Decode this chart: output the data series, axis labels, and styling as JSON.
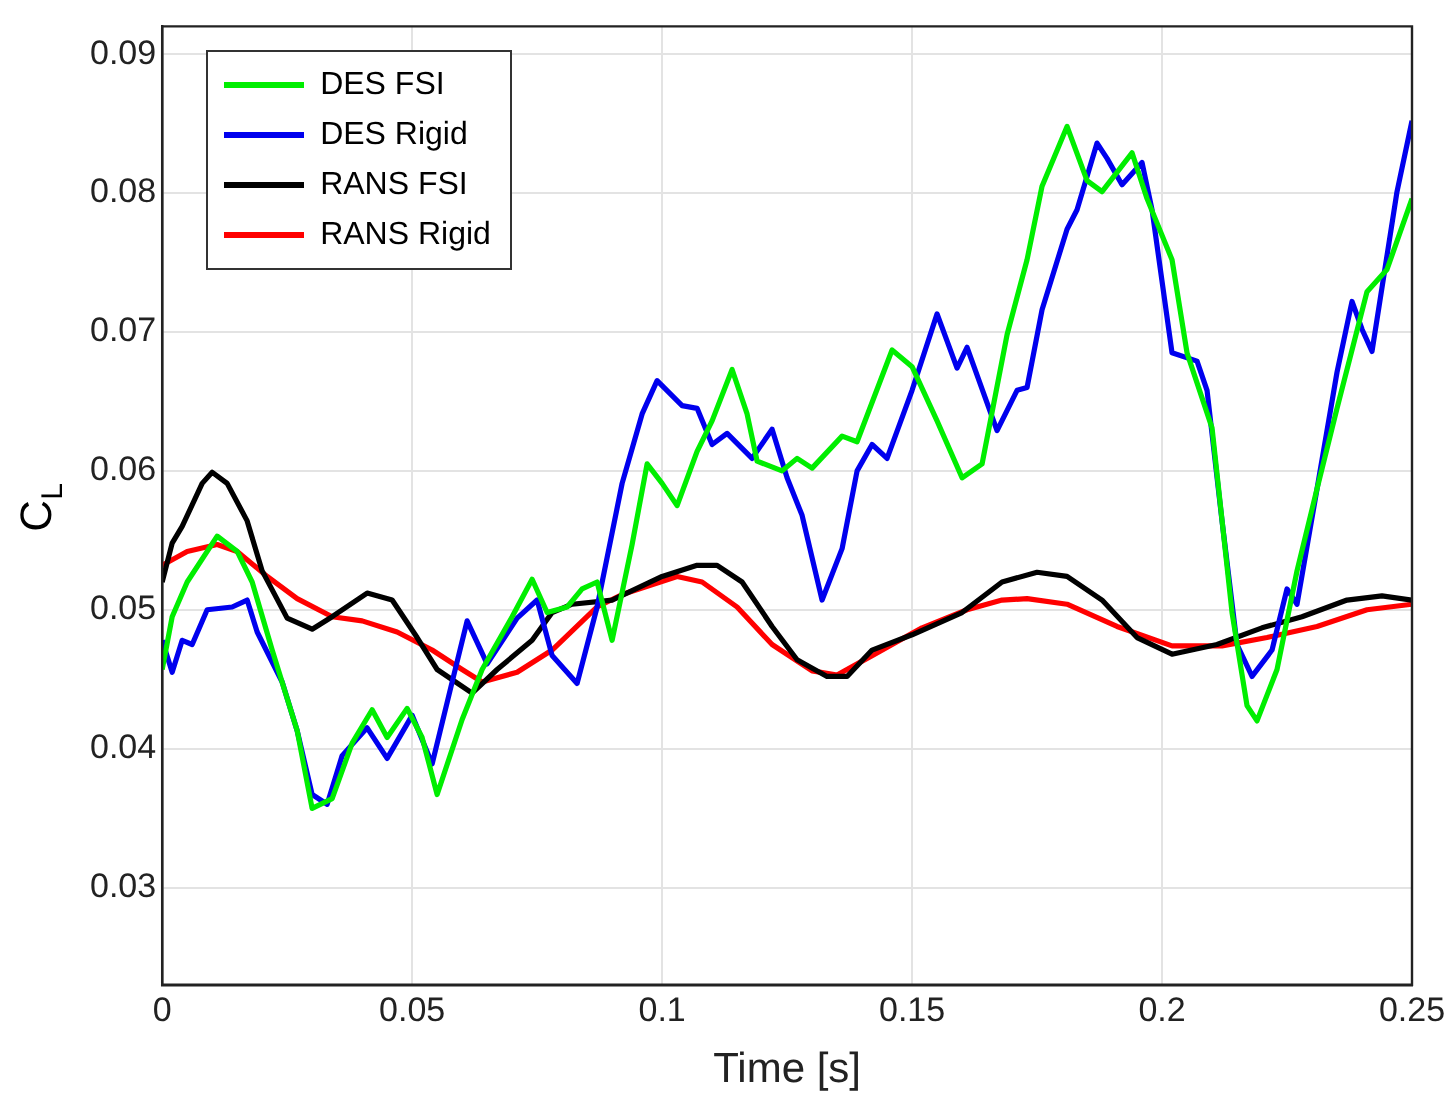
{
  "chart_data": {
    "type": "line",
    "xlabel": "Time [s]",
    "ylabel": "C$_{L}$",
    "xlim": [
      0,
      0.25
    ],
    "ylim": [
      0.023,
      0.092
    ],
    "xticks": [
      0,
      0.05,
      0.1,
      0.15,
      0.2,
      0.25
    ],
    "yticks": [
      0.03,
      0.04,
      0.05,
      0.06,
      0.07,
      0.08,
      0.09
    ],
    "grid": true,
    "legend": "top left",
    "marker": "none",
    "line_style": "solid",
    "series": [
      {
        "name": "DES FSI",
        "color": "#00ee00",
        "x": [
          0,
          0.002,
          0.005,
          0.011,
          0.015,
          0.018,
          0.022,
          0.027,
          0.03,
          0.034,
          0.038,
          0.042,
          0.045,
          0.049,
          0.052,
          0.055,
          0.06,
          0.064,
          0.07,
          0.074,
          0.077,
          0.081,
          0.084,
          0.087,
          0.09,
          0.094,
          0.097,
          0.1,
          0.103,
          0.107,
          0.11,
          0.114,
          0.117,
          0.119,
          0.124,
          0.127,
          0.13,
          0.136,
          0.139,
          0.146,
          0.15,
          0.155,
          0.16,
          0.164,
          0.169,
          0.173,
          0.176,
          0.181,
          0.185,
          0.188,
          0.194,
          0.197,
          0.202,
          0.205,
          0.21,
          0.214,
          0.217,
          0.219,
          0.223,
          0.227,
          0.231,
          0.235,
          0.241,
          0.245,
          0.25
        ],
        "values": [
          0.0457,
          0.0495,
          0.052,
          0.0553,
          0.0542,
          0.052,
          0.0471,
          0.0413,
          0.0357,
          0.0364,
          0.0404,
          0.0428,
          0.0408,
          0.0429,
          0.0408,
          0.0367,
          0.0421,
          0.0457,
          0.0495,
          0.0522,
          0.0498,
          0.0502,
          0.0515,
          0.052,
          0.0478,
          0.0547,
          0.0605,
          0.0591,
          0.0575,
          0.0614,
          0.0636,
          0.0673,
          0.0641,
          0.0607,
          0.06,
          0.0609,
          0.0602,
          0.0625,
          0.0621,
          0.0687,
          0.0675,
          0.0636,
          0.0595,
          0.0605,
          0.0698,
          0.0752,
          0.0805,
          0.0848,
          0.0809,
          0.0801,
          0.0829,
          0.0796,
          0.0752,
          0.0685,
          0.0631,
          0.0498,
          0.0431,
          0.042,
          0.0457,
          0.0528,
          0.0587,
          0.0645,
          0.0729,
          0.0745,
          0.0796
        ]
      },
      {
        "name": "DES Rigid",
        "color": "#0000ee",
        "x": [
          0,
          0.002,
          0.004,
          0.006,
          0.009,
          0.014,
          0.017,
          0.019,
          0.024,
          0.027,
          0.03,
          0.033,
          0.036,
          0.041,
          0.045,
          0.05,
          0.054,
          0.058,
          0.061,
          0.065,
          0.071,
          0.075,
          0.078,
          0.083,
          0.087,
          0.092,
          0.096,
          0.099,
          0.104,
          0.107,
          0.11,
          0.113,
          0.118,
          0.122,
          0.125,
          0.128,
          0.132,
          0.136,
          0.139,
          0.142,
          0.145,
          0.15,
          0.155,
          0.159,
          0.161,
          0.167,
          0.171,
          0.173,
          0.176,
          0.181,
          0.183,
          0.187,
          0.189,
          0.192,
          0.196,
          0.198,
          0.202,
          0.207,
          0.209,
          0.212,
          0.215,
          0.218,
          0.222,
          0.225,
          0.227,
          0.231,
          0.235,
          0.238,
          0.24,
          0.242,
          0.247,
          0.25
        ],
        "values": [
          0.0478,
          0.0455,
          0.0478,
          0.0475,
          0.05,
          0.0502,
          0.0507,
          0.0484,
          0.0448,
          0.0413,
          0.0367,
          0.036,
          0.0395,
          0.0415,
          0.0393,
          0.0424,
          0.0389,
          0.0448,
          0.0492,
          0.0461,
          0.0494,
          0.0507,
          0.0467,
          0.0447,
          0.0502,
          0.0591,
          0.0641,
          0.0665,
          0.0647,
          0.0645,
          0.0619,
          0.0627,
          0.0609,
          0.063,
          0.0595,
          0.0568,
          0.0507,
          0.0544,
          0.06,
          0.0619,
          0.0609,
          0.0658,
          0.0713,
          0.0674,
          0.0689,
          0.0629,
          0.0658,
          0.066,
          0.0716,
          0.0774,
          0.0788,
          0.0836,
          0.0825,
          0.0806,
          0.0822,
          0.0788,
          0.0685,
          0.0679,
          0.0658,
          0.0564,
          0.0475,
          0.0452,
          0.0471,
          0.0515,
          0.0504,
          0.0587,
          0.0671,
          0.0722,
          0.0702,
          0.0686,
          0.0801,
          0.0852
        ]
      },
      {
        "name": "RANS FSI",
        "color": "#000000",
        "x": [
          0,
          0.002,
          0.004,
          0.008,
          0.01,
          0.013,
          0.017,
          0.02,
          0.025,
          0.03,
          0.034,
          0.041,
          0.046,
          0.051,
          0.055,
          0.062,
          0.067,
          0.074,
          0.078,
          0.082,
          0.09,
          0.1,
          0.107,
          0.111,
          0.116,
          0.122,
          0.127,
          0.133,
          0.137,
          0.142,
          0.15,
          0.16,
          0.168,
          0.175,
          0.181,
          0.188,
          0.195,
          0.202,
          0.211,
          0.22,
          0.228,
          0.237,
          0.244,
          0.25
        ],
        "values": [
          0.052,
          0.0548,
          0.056,
          0.0591,
          0.0599,
          0.0591,
          0.0564,
          0.0528,
          0.0494,
          0.0486,
          0.0495,
          0.0512,
          0.0507,
          0.048,
          0.0457,
          0.044,
          0.0457,
          0.0478,
          0.0498,
          0.0504,
          0.0507,
          0.0524,
          0.0532,
          0.0532,
          0.052,
          0.0488,
          0.0464,
          0.0452,
          0.0452,
          0.0471,
          0.0482,
          0.0498,
          0.052,
          0.0527,
          0.0524,
          0.0507,
          0.048,
          0.0468,
          0.0475,
          0.0487,
          0.0495,
          0.0507,
          0.051,
          0.0507
        ]
      },
      {
        "name": "RANS Rigid",
        "color": "#ff0000",
        "x": [
          0,
          0.005,
          0.011,
          0.015,
          0.021,
          0.027,
          0.034,
          0.04,
          0.047,
          0.054,
          0.06,
          0.064,
          0.071,
          0.078,
          0.087,
          0.092,
          0.103,
          0.108,
          0.115,
          0.122,
          0.13,
          0.135,
          0.142,
          0.152,
          0.161,
          0.168,
          0.173,
          0.181,
          0.191,
          0.202,
          0.212,
          0.221,
          0.231,
          0.241,
          0.25
        ],
        "values": [
          0.0532,
          0.0542,
          0.0547,
          0.0542,
          0.0524,
          0.0508,
          0.0495,
          0.0492,
          0.0484,
          0.0471,
          0.0457,
          0.0448,
          0.0455,
          0.0471,
          0.0502,
          0.0511,
          0.0524,
          0.052,
          0.0502,
          0.0475,
          0.0456,
          0.0453,
          0.0467,
          0.0487,
          0.05,
          0.0507,
          0.0508,
          0.0504,
          0.0488,
          0.0474,
          0.0474,
          0.048,
          0.0488,
          0.05,
          0.0504
        ]
      }
    ]
  }
}
